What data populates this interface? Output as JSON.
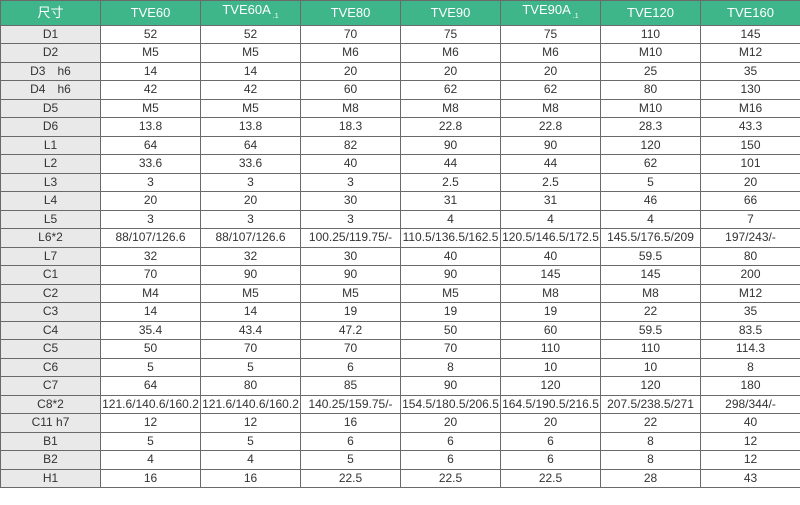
{
  "table": {
    "headers": [
      {
        "label": "尺寸",
        "sub": ""
      },
      {
        "label": "TVE60",
        "sub": ""
      },
      {
        "label": "TVE60A",
        "sub": ".1"
      },
      {
        "label": "TVE80",
        "sub": ""
      },
      {
        "label": "TVE90",
        "sub": ""
      },
      {
        "label": "TVE90A",
        "sub": ".1"
      },
      {
        "label": "TVE120",
        "sub": ""
      },
      {
        "label": "TVE160",
        "sub": ""
      }
    ],
    "rows": [
      [
        "D1",
        "52",
        "52",
        "70",
        "75",
        "75",
        "110",
        "145"
      ],
      [
        "D2",
        "M5",
        "M5",
        "M6",
        "M6",
        "M6",
        "M10",
        "M12"
      ],
      [
        "D3　h6",
        "14",
        "14",
        "20",
        "20",
        "20",
        "25",
        "35"
      ],
      [
        "D4　h6",
        "42",
        "42",
        "60",
        "62",
        "62",
        "80",
        "130"
      ],
      [
        "D5",
        "M5",
        "M5",
        "M8",
        "M8",
        "M8",
        "M10",
        "M16"
      ],
      [
        "D6",
        "13.8",
        "13.8",
        "18.3",
        "22.8",
        "22.8",
        "28.3",
        "43.3"
      ],
      [
        "L1",
        "64",
        "64",
        "82",
        "90",
        "90",
        "120",
        "150"
      ],
      [
        "L2",
        "33.6",
        "33.6",
        "40",
        "44",
        "44",
        "62",
        "101"
      ],
      [
        "L3",
        "3",
        "3",
        "3",
        "2.5",
        "2.5",
        "5",
        "20"
      ],
      [
        "L4",
        "20",
        "20",
        "30",
        "31",
        "31",
        "46",
        "66"
      ],
      [
        "L5",
        "3",
        "3",
        "3",
        "4",
        "4",
        "4",
        "7"
      ],
      [
        "L6*2",
        "88/107/126.6",
        "88/107/126.6",
        "100.25/119.75/-",
        "110.5/136.5/162.5",
        "120.5/146.5/172.5",
        "145.5/176.5/209",
        "197/243/-"
      ],
      [
        "L7",
        "32",
        "32",
        "30",
        "40",
        "40",
        "59.5",
        "80"
      ],
      [
        "C1",
        "70",
        "90",
        "90",
        "90",
        "145",
        "145",
        "200"
      ],
      [
        "C2",
        "M4",
        "M5",
        "M5",
        "M5",
        "M8",
        "M8",
        "M12"
      ],
      [
        "C3",
        "14",
        "14",
        "19",
        "19",
        "19",
        "22",
        "35"
      ],
      [
        "C4",
        "35.4",
        "43.4",
        "47.2",
        "50",
        "60",
        "59.5",
        "83.5"
      ],
      [
        "C5",
        "50",
        "70",
        "70",
        "70",
        "110",
        "110",
        "114.3"
      ],
      [
        "C6",
        "5",
        "5",
        "6",
        "8",
        "10",
        "10",
        "8"
      ],
      [
        "C7",
        "64",
        "80",
        "85",
        "90",
        "120",
        "120",
        "180"
      ],
      [
        "C8*2",
        "121.6/140.6/160.2",
        "121.6/140.6/160.2",
        "140.25/159.75/-",
        "154.5/180.5/206.5",
        "164.5/190.5/216.5",
        "207.5/238.5/271",
        "298/344/-"
      ],
      [
        "C11 h7",
        "12",
        "12",
        "16",
        "20",
        "20",
        "22",
        "40"
      ],
      [
        "B1",
        "5",
        "5",
        "6",
        "6",
        "6",
        "8",
        "12"
      ],
      [
        "B2",
        "4",
        "4",
        "5",
        "6",
        "6",
        "8",
        "12"
      ],
      [
        "H1",
        "16",
        "16",
        "22.5",
        "22.5",
        "22.5",
        "28",
        "43"
      ]
    ]
  },
  "colors": {
    "header_bg": "#3fb58a",
    "label_bg": "#e9e9e9",
    "border": "#6a6a6a"
  }
}
